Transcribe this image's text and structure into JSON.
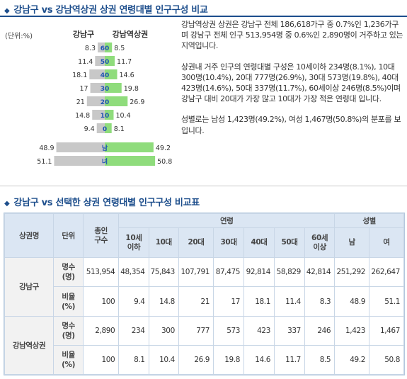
{
  "section1": {
    "title": "강남구 vs 강남역상권 상권 연령대별 인구구성 비교"
  },
  "chart_data": {
    "type": "bar",
    "unit_label": "(단위:%)",
    "left_header": "강남구",
    "right_header": "강남역상권",
    "categories": [
      "60",
      "50",
      "40",
      "30",
      "20",
      "10",
      "0",
      "남",
      "녀"
    ],
    "series": [
      {
        "name": "강남구",
        "values": [
          8.3,
          11.4,
          18.1,
          17,
          21,
          14.8,
          9.4,
          48.9,
          51.1
        ]
      },
      {
        "name": "강남역상권",
        "values": [
          8.5,
          11.7,
          14.6,
          19.8,
          26.9,
          10.4,
          8.1,
          49.2,
          50.8
        ]
      }
    ],
    "colors": {
      "left": "#c8c8c8",
      "right": "#8fdc7c",
      "center_text": "#2055b4"
    }
  },
  "description": {
    "p1": "강남역상권 상권은 강남구 전체 186,618가구 중 0.7%인 1,236가구며 강남구 전체 인구 513,954명 중 0.6%인 2,890명이 거주하고 있는 지역입니다.",
    "p2": "상권내 거주 인구의 연령대별 구성은 10세이하 234명(8.1%), 10대 300명(10.4%), 20대 777명(26.9%), 30대 573명(19.8%), 40대 423명(14.6%), 50대 337명(11.7%), 60세이상 246명(8.5%)이며 강남구 대비 20대가 가장 많고 10대가 가장 적은 연령대 입니다.",
    "p3": "성별로는 남성 1,423명(49.2%), 여성 1,467명(50.8%)의 분포를 보입니다."
  },
  "section2": {
    "title": "강남구 vs 선택한 상권 연령대별 인구구성 비교표"
  },
  "table": {
    "h_name": "상권명",
    "h_unit": "단위",
    "h_total": "총인\n구수",
    "h_age": "연령",
    "h_gender": "성별",
    "age_cols": [
      "10세\n이하",
      "10대",
      "20대",
      "30대",
      "40대",
      "50대",
      "60세\n이상"
    ],
    "gender_cols": [
      "남",
      "여"
    ],
    "unit_count": "명수\n(명)",
    "unit_ratio": "비율\n(%)",
    "rows": [
      {
        "name": "강남구",
        "count": [
          "513,954",
          "48,354",
          "75,843",
          "107,791",
          "87,475",
          "92,814",
          "58,829",
          "42,814",
          "251,292",
          "262,647"
        ],
        "ratio": [
          "100",
          "9.4",
          "14.8",
          "21",
          "17",
          "18.1",
          "11.4",
          "8.3",
          "48.9",
          "51.1"
        ]
      },
      {
        "name": "강남역상권",
        "count": [
          "2,890",
          "234",
          "300",
          "777",
          "573",
          "423",
          "337",
          "246",
          "1,423",
          "1,467"
        ],
        "ratio": [
          "100",
          "8.1",
          "10.4",
          "26.9",
          "19.8",
          "14.6",
          "11.7",
          "8.5",
          "49.2",
          "50.8"
        ]
      }
    ]
  }
}
